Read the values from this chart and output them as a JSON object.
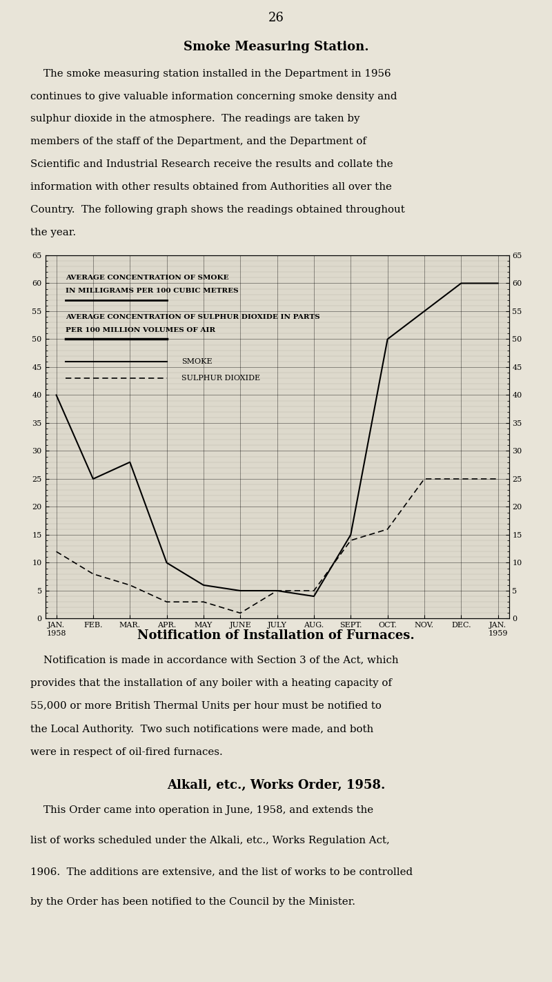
{
  "page_number": "26",
  "title": "Smoke Measuring Station.",
  "section2_title": "Notification of Installation of Furnaces.",
  "section3_title": "Alkali, etc., Works Order, 1958.",
  "text_lines1": [
    "    The smoke measuring station installed in the Department in 1956",
    "continues to give valuable information concerning smoke density and",
    "sulphur dioxide in the atmosphere.  The readings are taken by",
    "members of the staff of the Department, and the Department of",
    "Scientific and Industrial Research receive the results and collate the",
    "information with other results obtained from Authorities all over the",
    "Country.  The following graph shows the readings obtained throughout",
    "the year."
  ],
  "text_lines2": [
    "    Notification is made in accordance with Section 3 of the Act, which",
    "provides that the installation of any boiler with a heating capacity of",
    "55,000 or more British Thermal Units per hour must be notified to",
    "the Local Authority.  Two such notifications were made, and both",
    "were in respect of oil-fired furnaces."
  ],
  "text_lines3": [
    "    This Order came into operation in June, 1958, and extends the",
    "list of works scheduled under the Alkali, etc., Works Regulation Act,",
    "1906.  The additions are extensive, and the list of works to be controlled",
    "by the Order has been notified to the Council by the Minister."
  ],
  "x_tick_labels": [
    "JAN.\n1958",
    "FEB.",
    "MAR.",
    "APR.",
    "MAY",
    "JUNE",
    "JULY",
    "AUG.",
    "SEPT.",
    "OCT.",
    "NOV.",
    "DEC.",
    "JAN.\n1959"
  ],
  "smoke_x": [
    0,
    1,
    2,
    3,
    4,
    5,
    6,
    7,
    8,
    9,
    10,
    11,
    12
  ],
  "smoke_y": [
    40,
    25,
    28,
    10,
    6,
    5,
    5,
    4,
    15,
    50,
    55,
    60,
    60
  ],
  "sulphur_x": [
    0,
    1,
    2,
    3,
    4,
    5,
    6,
    7,
    8,
    9,
    10,
    11,
    12
  ],
  "sulphur_y": [
    12,
    8,
    6,
    3,
    3,
    1,
    5,
    5,
    14,
    16,
    25,
    25,
    25
  ],
  "ylim": [
    0,
    65
  ],
  "yticks": [
    0,
    5,
    10,
    15,
    20,
    25,
    30,
    35,
    40,
    45,
    50,
    55,
    60,
    65
  ],
  "xlim": [
    -0.3,
    12.3
  ],
  "bg_color": "#ddd9cc",
  "page_bg": "#e8e4d8",
  "annotation1_line1": "AVERAGE CONCENTRATION OF SMOKE",
  "annotation1_line2": "IN MILLIGRAMS PER 100 CUBIC METRES",
  "annotation2_line1": "AVERAGE CONCENTRATION OF SULPHUR DIOXIDE IN PARTS",
  "annotation2_line2": "PER 100 MILLION VOLUMES OF AIR",
  "legend_smoke_label": "SMOKE",
  "legend_sulphur_label": "SULPHUR DIOXIDE",
  "font_size_body": 10.8,
  "font_size_page_num": 13,
  "font_size_title": 13,
  "font_size_annot": 7.5,
  "font_size_tick": 8,
  "font_size_legend": 8
}
